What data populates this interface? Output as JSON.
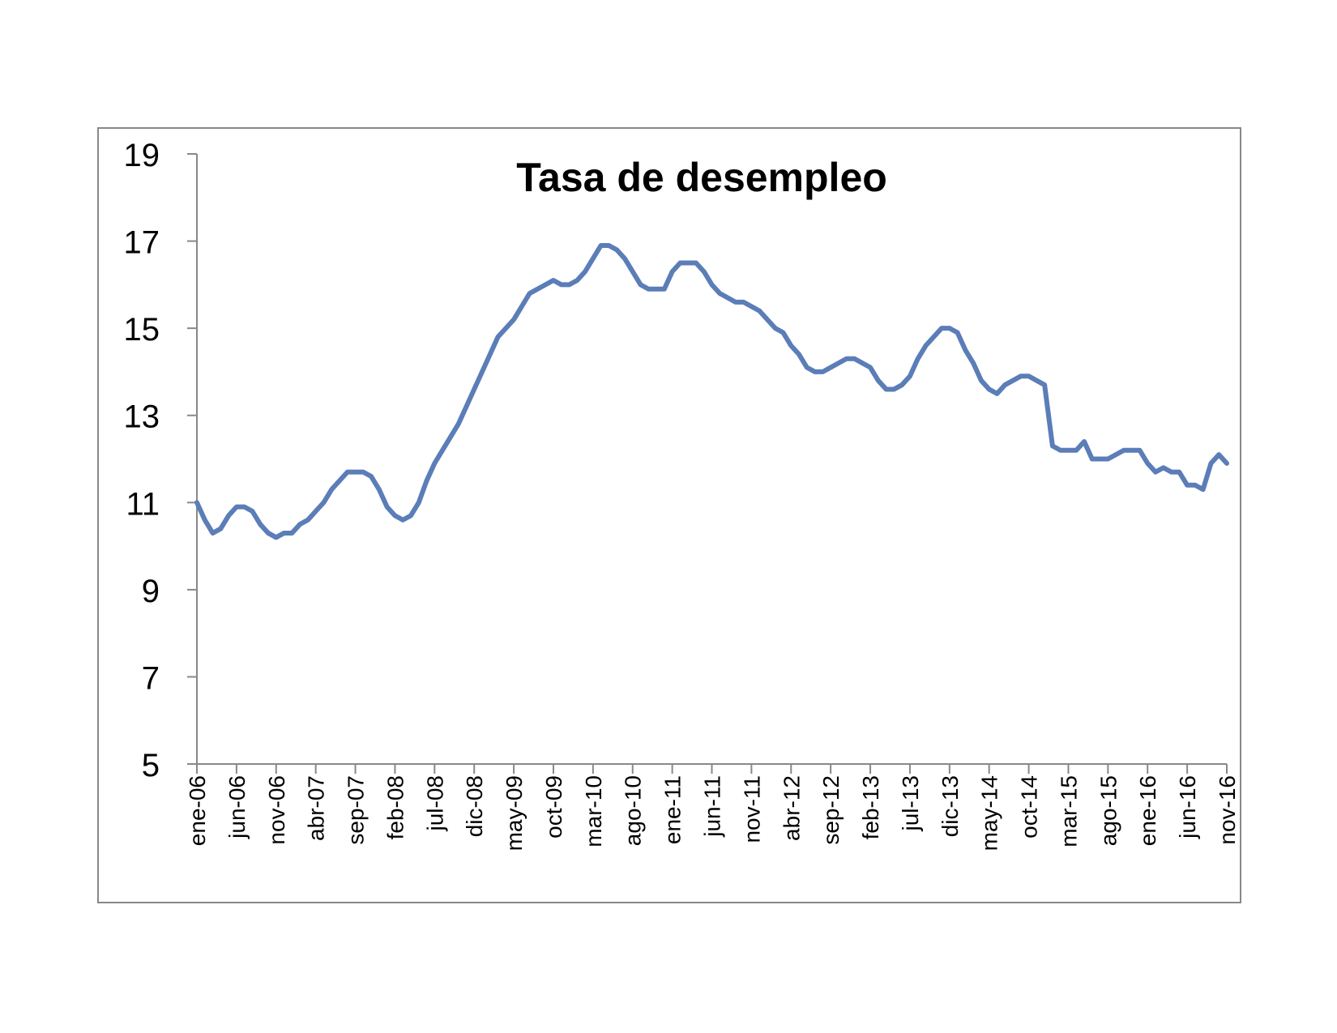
{
  "chart_data": {
    "type": "line",
    "title": "Tasa de desempleo",
    "xlabel": "",
    "ylabel": "",
    "ylim": [
      5,
      19
    ],
    "yticks": [
      5,
      7,
      9,
      11,
      13,
      15,
      17,
      19
    ],
    "grid": false,
    "legend": "none",
    "line_color": "#5B7DB8",
    "xtick_labels": [
      "ene-06",
      "jun-06",
      "nov-06",
      "abr-07",
      "sep-07",
      "feb-08",
      "jul-08",
      "dic-08",
      "may-09",
      "oct-09",
      "mar-10",
      "ago-10",
      "ene-11",
      "jun-11",
      "nov-11",
      "abr-12",
      "sep-12",
      "feb-13",
      "jul-13",
      "dic-13",
      "may-14",
      "oct-14",
      "mar-15",
      "ago-15",
      "ene-16",
      "jun-16",
      "nov-16"
    ],
    "series": [
      {
        "start": "ene-06",
        "frequency": "monthly",
        "values": [
          11.0,
          10.6,
          10.3,
          10.4,
          10.7,
          10.9,
          10.9,
          10.8,
          10.5,
          10.3,
          10.2,
          10.3,
          10.3,
          10.5,
          10.6,
          10.8,
          11.0,
          11.3,
          11.5,
          11.7,
          11.7,
          11.7,
          11.6,
          11.3,
          10.9,
          10.7,
          10.6,
          10.7,
          11.0,
          11.5,
          11.9,
          12.2,
          12.5,
          12.8,
          13.2,
          13.6,
          14.0,
          14.4,
          14.8,
          15.0,
          15.2,
          15.5,
          15.8,
          15.9,
          16.0,
          16.1,
          16.0,
          16.0,
          16.1,
          16.3,
          16.6,
          16.9,
          16.9,
          16.8,
          16.6,
          16.3,
          16.0,
          15.9,
          15.9,
          15.9,
          16.3,
          16.5,
          16.5,
          16.5,
          16.3,
          16.0,
          15.8,
          15.7,
          15.6,
          15.6,
          15.5,
          15.4,
          15.2,
          15.0,
          14.9,
          14.6,
          14.4,
          14.1,
          14.0,
          14.0,
          14.1,
          14.2,
          14.3,
          14.3,
          14.2,
          14.1,
          13.8,
          13.6,
          13.6,
          13.7,
          13.9,
          14.3,
          14.6,
          14.8,
          15.0,
          15.0,
          14.9,
          14.5,
          14.2,
          13.8,
          13.6,
          13.5,
          13.7,
          13.8,
          13.9,
          13.9,
          13.8,
          13.7,
          12.3,
          12.2,
          12.2,
          12.2,
          12.4,
          12.0,
          12.0,
          12.0,
          12.1,
          12.2,
          12.2,
          12.2,
          11.9,
          11.7,
          11.8,
          11.7,
          11.7,
          11.4,
          11.4,
          11.3,
          11.9,
          12.1,
          11.9
        ]
      }
    ]
  }
}
